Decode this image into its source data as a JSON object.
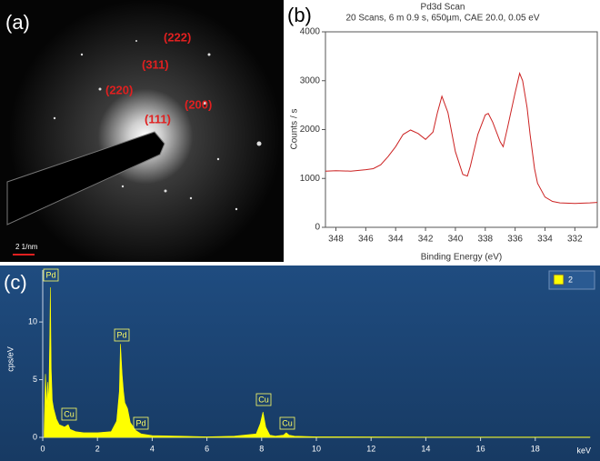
{
  "image_panel": {
    "panel_label": "(a)",
    "labels": [
      "(222)",
      "(311)",
      "(220)",
      "(200)",
      "(111)"
    ],
    "scale_bar": "2 1/nm"
  },
  "chart_data": [
    {
      "type": "line",
      "panel_label": "(b)",
      "title": "Pd3d Scan",
      "subtitle": "20 Scans,  6 m 0.9 s,  650µm,  CAE 20.0,  0.05 eV",
      "x_label": "Binding Energy (eV)",
      "y_label": "Counts / s",
      "x": [
        348.7,
        348,
        347,
        346,
        345.5,
        345,
        344.5,
        344,
        343.5,
        343,
        342.5,
        342,
        341.5,
        341.2,
        340.9,
        340.5,
        340,
        339.5,
        339.2,
        339,
        338.5,
        338,
        337.8,
        337.5,
        337,
        336.8,
        336.5,
        336,
        335.7,
        335.5,
        335.2,
        335,
        334.7,
        334.5,
        334,
        333.5,
        333,
        332,
        331,
        330.5
      ],
      "color": "#cc2222",
      "values": [
        1150,
        1160,
        1150,
        1180,
        1200,
        1280,
        1450,
        1650,
        1900,
        1990,
        1920,
        1800,
        1950,
        2350,
        2680,
        2350,
        1550,
        1080,
        1050,
        1250,
        1900,
        2300,
        2330,
        2150,
        1750,
        1650,
        2050,
        2750,
        3150,
        3000,
        2450,
        1900,
        1200,
        900,
        620,
        530,
        500,
        490,
        500,
        510
      ],
      "xlim": [
        348.7,
        330.5
      ],
      "xticks": [
        348,
        346,
        344,
        342,
        340,
        338,
        336,
        334,
        332
      ],
      "ylim": [
        0,
        4000
      ],
      "yticks": [
        0,
        1000,
        2000,
        3000,
        4000
      ]
    },
    {
      "type": "area",
      "panel_label": "(c)",
      "x_label": "keV",
      "y_label": "cps/eV",
      "x": [
        0.05,
        0.1,
        0.15,
        0.18,
        0.22,
        0.26,
        0.28,
        0.31,
        0.35,
        0.4,
        0.5,
        0.6,
        0.8,
        0.93,
        1.0,
        1.2,
        1.5,
        2.0,
        2.5,
        2.7,
        2.8,
        2.84,
        2.9,
        2.95,
        3.0,
        3.1,
        3.2,
        3.4,
        3.6,
        4.0,
        5.0,
        6.0,
        7.0,
        7.8,
        7.95,
        8.05,
        8.15,
        8.3,
        8.5,
        8.8,
        8.9,
        9.0,
        9.2,
        10.0,
        14.0,
        20.0
      ],
      "series": [
        {
          "name": "2",
          "color": "#ffff00",
          "values": [
            0.5,
            5.5,
            2.5,
            4.8,
            3.0,
            9.0,
            13.0,
            6.0,
            3.2,
            2.5,
            1.6,
            1.1,
            0.9,
            1.1,
            0.7,
            0.5,
            0.4,
            0.4,
            0.5,
            1.4,
            4.0,
            8.1,
            5.5,
            4.0,
            3.0,
            2.5,
            1.3,
            0.6,
            0.3,
            0.15,
            0.1,
            0.05,
            0.1,
            0.3,
            1.2,
            2.2,
            0.9,
            0.2,
            0.1,
            0.2,
            0.4,
            0.2,
            0.1,
            0.05,
            0.02,
            0.02
          ]
        }
      ],
      "annotations": [
        "Pd",
        "Cu",
        "Pd",
        "Pd",
        "Cu",
        "Cu"
      ],
      "xlim": [
        0,
        20
      ],
      "xticks": [
        0,
        2,
        4,
        6,
        8,
        10,
        12,
        14,
        16,
        18
      ],
      "ylim": [
        0,
        14.5
      ],
      "yticks": [
        0,
        5,
        10
      ]
    }
  ]
}
